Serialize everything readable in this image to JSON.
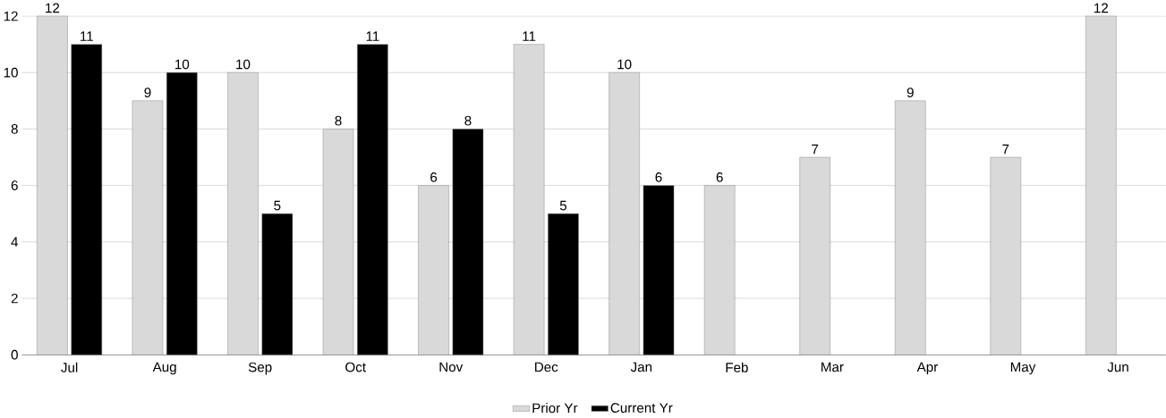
{
  "chart_data": {
    "type": "bar",
    "categories": [
      "Jul",
      "Aug",
      "Sep",
      "Oct",
      "Nov",
      "Dec",
      "Jan",
      "Feb",
      "Mar",
      "Apr",
      "May",
      "Jun"
    ],
    "series": [
      {
        "name": "Prior Yr",
        "color": "#d9d9d9",
        "values": [
          12,
          9,
          10,
          8,
          6,
          11,
          10,
          6,
          7,
          9,
          7,
          12
        ]
      },
      {
        "name": "Current Yr",
        "color": "#000000",
        "values": [
          11,
          10,
          5,
          11,
          8,
          5,
          6,
          null,
          null,
          null,
          null,
          null
        ]
      }
    ],
    "ylim": [
      0,
      12
    ],
    "yticks": [
      0,
      2,
      4,
      6,
      8,
      10,
      12
    ],
    "grid": "y",
    "legend": "bottom",
    "data_labels": true
  }
}
